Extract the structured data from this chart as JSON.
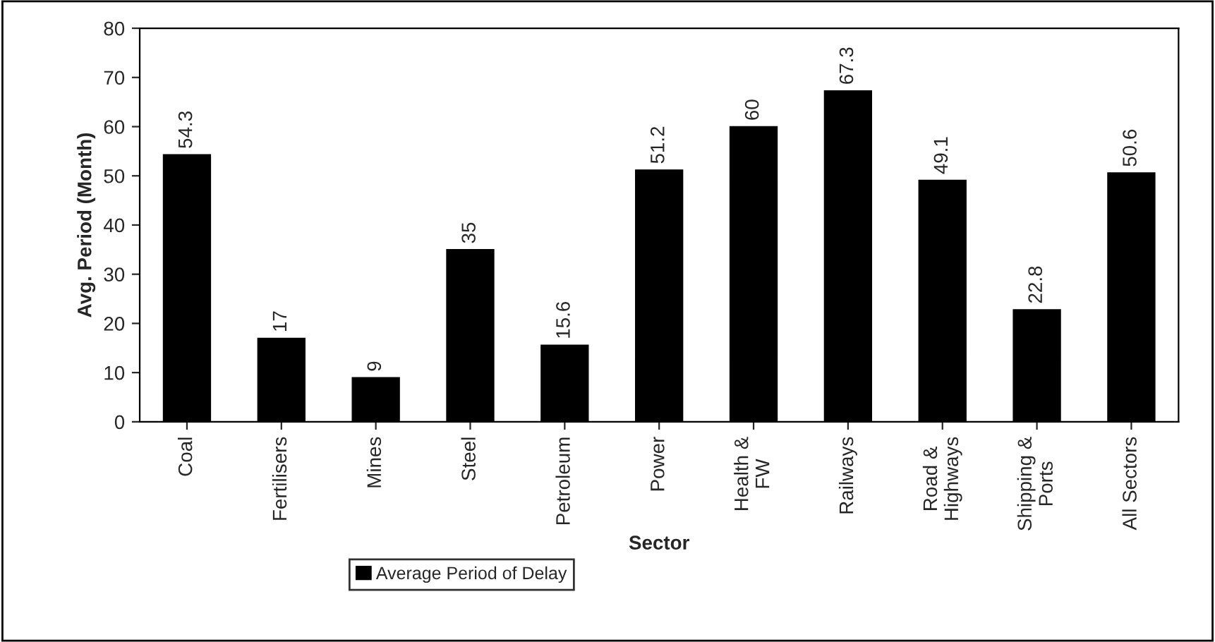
{
  "chart_data": {
    "type": "bar",
    "xlabel": "Sector",
    "ylabel": "Avg. Period (Month)",
    "categories": [
      "Coal",
      "Fertilisers",
      "Mines",
      "Steel",
      "Petroleum",
      "Power",
      "Health &\nFW",
      "Railways",
      "Road &\nHighways",
      "Shipping &\nPorts",
      "All Sectors"
    ],
    "series": [
      {
        "name": "Average Period of Delay",
        "color": "#000000",
        "values": [
          54.3,
          17,
          9,
          35,
          15.6,
          51.2,
          60,
          67.3,
          49.1,
          22.8,
          50.6
        ]
      }
    ],
    "ylim": [
      0,
      80
    ],
    "yticks": [
      0,
      10,
      20,
      30,
      40,
      50,
      60,
      70,
      80
    ],
    "data_labels": true,
    "legend": "bottom",
    "grid": false
  }
}
